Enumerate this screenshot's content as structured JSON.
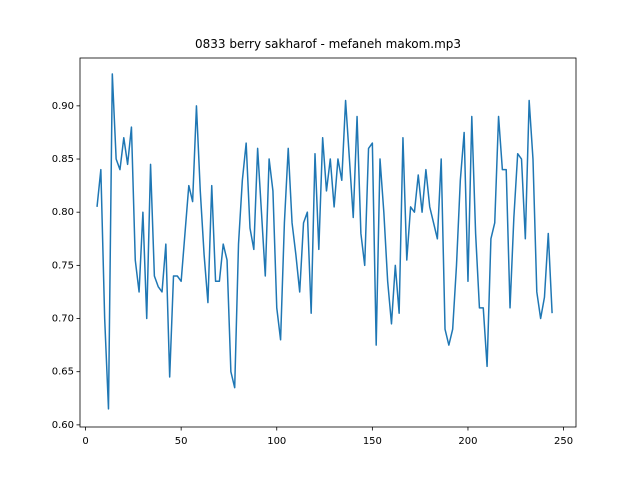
{
  "chart_data": {
    "type": "line",
    "title": "0833 berry sakharof - mefaneh makom.mp3",
    "color": "#1f77b4",
    "x": [
      6,
      8,
      10,
      12,
      14,
      16,
      18,
      20,
      22,
      24,
      26,
      28,
      30,
      32,
      34,
      36,
      38,
      40,
      42,
      44,
      46,
      48,
      50,
      52,
      54,
      56,
      58,
      60,
      62,
      64,
      66,
      68,
      70,
      72,
      74,
      76,
      78,
      80,
      82,
      84,
      86,
      88,
      90,
      92,
      94,
      96,
      98,
      100,
      102,
      104,
      106,
      108,
      110,
      112,
      114,
      116,
      118,
      120,
      122,
      124,
      126,
      128,
      130,
      132,
      134,
      136,
      138,
      140,
      142,
      144,
      146,
      148,
      150,
      152,
      154,
      156,
      158,
      160,
      162,
      164,
      166,
      168,
      170,
      172,
      174,
      176,
      178,
      180,
      182,
      184,
      186,
      188,
      190,
      192,
      194,
      196,
      198,
      200,
      202,
      204,
      206,
      208,
      210,
      212,
      214,
      216,
      218,
      220,
      222,
      224,
      226,
      228,
      230,
      232,
      234,
      236,
      238,
      240,
      242,
      244
    ],
    "values": [
      0.805,
      0.84,
      0.7,
      0.615,
      0.93,
      0.85,
      0.84,
      0.87,
      0.845,
      0.88,
      0.755,
      0.725,
      0.8,
      0.7,
      0.845,
      0.74,
      0.73,
      0.725,
      0.77,
      0.645,
      0.74,
      0.74,
      0.735,
      0.78,
      0.825,
      0.81,
      0.9,
      0.82,
      0.76,
      0.715,
      0.825,
      0.735,
      0.735,
      0.77,
      0.755,
      0.65,
      0.635,
      0.77,
      0.83,
      0.865,
      0.785,
      0.765,
      0.86,
      0.8,
      0.74,
      0.85,
      0.82,
      0.71,
      0.68,
      0.79,
      0.86,
      0.79,
      0.76,
      0.725,
      0.79,
      0.8,
      0.705,
      0.855,
      0.765,
      0.87,
      0.82,
      0.85,
      0.805,
      0.85,
      0.83,
      0.905,
      0.85,
      0.795,
      0.89,
      0.78,
      0.75,
      0.86,
      0.865,
      0.675,
      0.85,
      0.8,
      0.735,
      0.695,
      0.75,
      0.705,
      0.87,
      0.755,
      0.805,
      0.8,
      0.835,
      0.8,
      0.84,
      0.805,
      0.79,
      0.775,
      0.85,
      0.69,
      0.675,
      0.69,
      0.75,
      0.83,
      0.875,
      0.735,
      0.89,
      0.78,
      0.71,
      0.71,
      0.655,
      0.775,
      0.79,
      0.89,
      0.84,
      0.84,
      0.71,
      0.795,
      0.855,
      0.85,
      0.775,
      0.905,
      0.85,
      0.725,
      0.7,
      0.72,
      0.78,
      0.705
    ],
    "xlim": [
      -2.9,
      256.5
    ],
    "ylim": [
      0.598,
      0.945
    ],
    "xticks": [
      0,
      50,
      100,
      150,
      200,
      250
    ],
    "yticks": [
      {
        "value": 0.6,
        "label": "0.60"
      },
      {
        "value": 0.65,
        "label": "0.65"
      },
      {
        "value": 0.7,
        "label": "0.70"
      },
      {
        "value": 0.75,
        "label": "0.75"
      },
      {
        "value": 0.8,
        "label": "0.80"
      },
      {
        "value": 0.85,
        "label": "0.85"
      },
      {
        "value": 0.9,
        "label": "0.90"
      }
    ],
    "grid": false
  }
}
